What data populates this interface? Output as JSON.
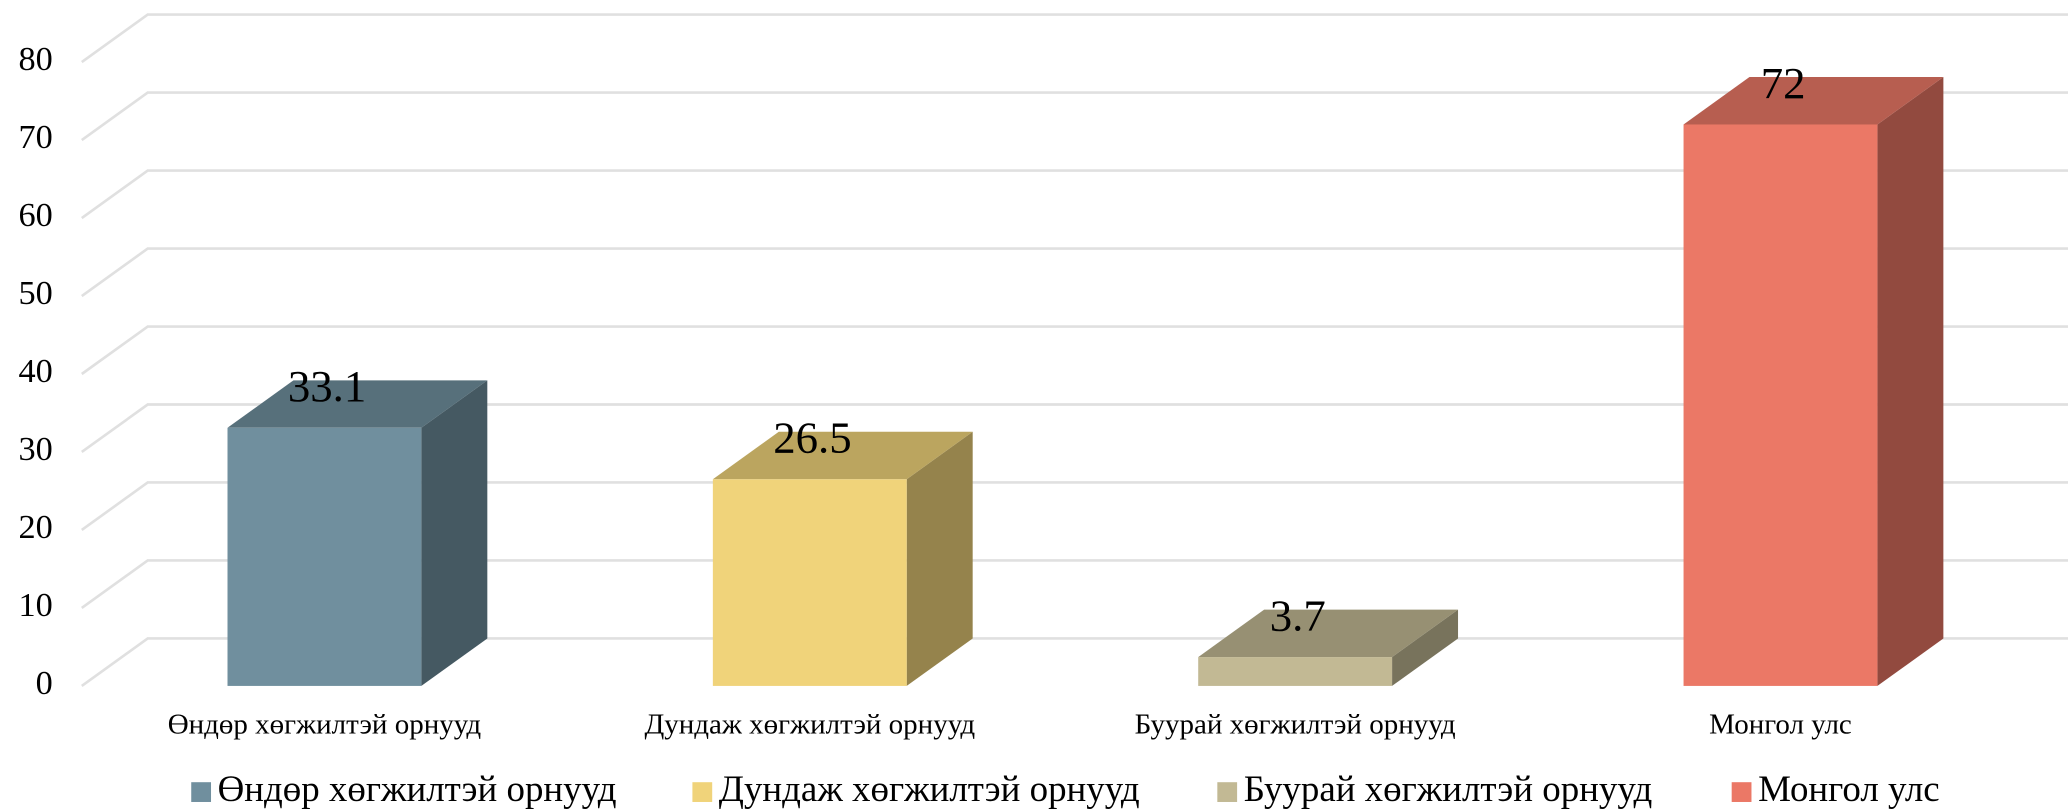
{
  "chart_data": {
    "type": "bar3d",
    "categories": [
      "Өндөр хөгжилтэй орнууд",
      "Дундаж хөгжилтэй орнууд",
      "Буурай хөгжилтэй орнууд",
      "Монгол улс"
    ],
    "values": [
      33.1,
      26.5,
      3.7,
      72
    ],
    "colors": [
      "#708f9e",
      "#f0d37a",
      "#c2b994",
      "#eb7866"
    ],
    "ylim": [
      0,
      80
    ],
    "yticks": [
      0,
      10,
      20,
      30,
      40,
      50,
      60,
      70,
      80
    ],
    "grid": true,
    "legend": "bottom"
  }
}
